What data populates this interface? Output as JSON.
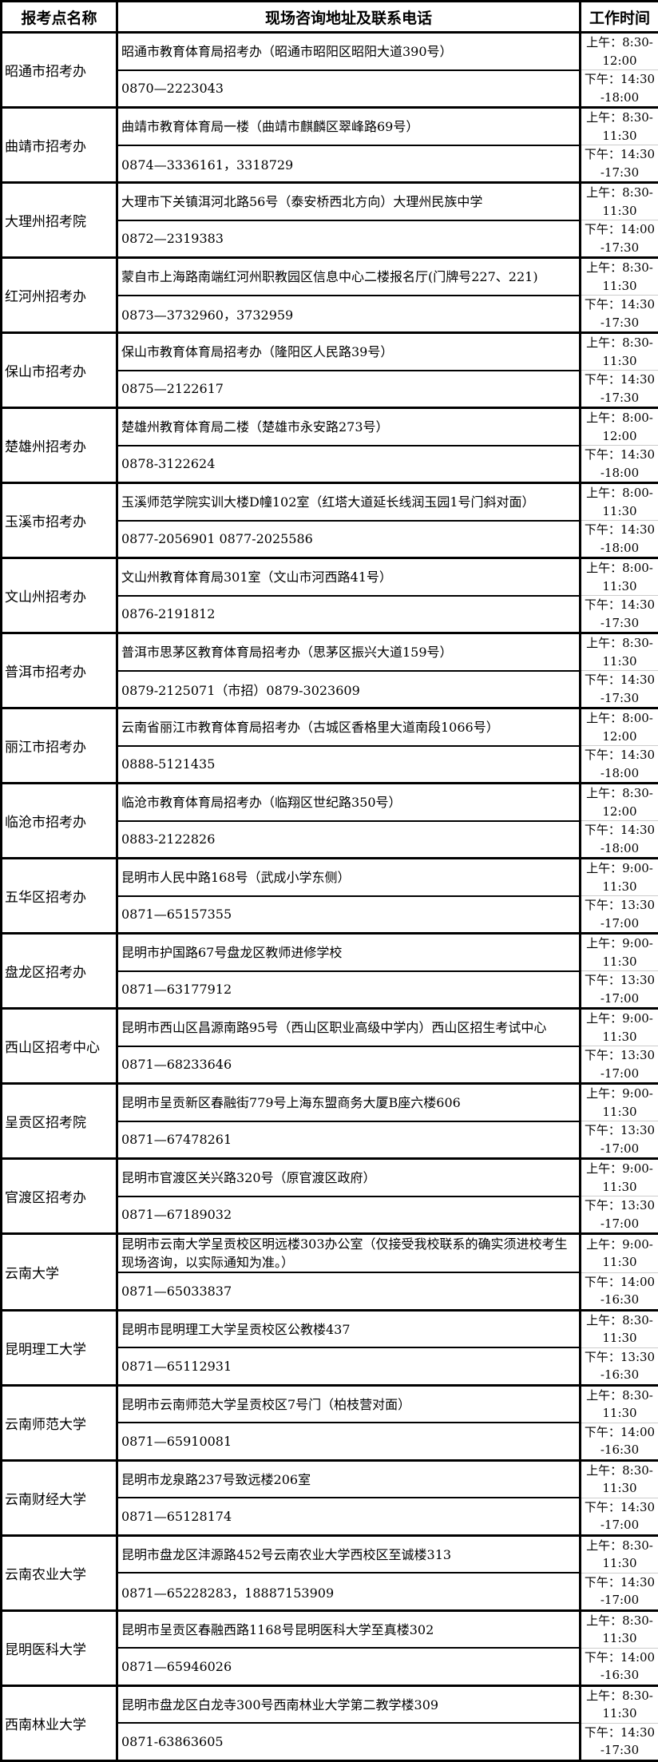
{
  "headers": {
    "name": "报考点名称",
    "address": "现场咨询地址及联系电话",
    "time": "工作时间"
  },
  "rows": [
    {
      "name": "昭通市招考办",
      "address": "昭通市教育体育局招考办（昭通市昭阳区昭阳大道390号）",
      "phone": "0870—2223043",
      "am": "上午：8:30-12:00",
      "pm": "下午：14:30-18:00"
    },
    {
      "name": "曲靖市招考办",
      "address": "曲靖市教育体育局一楼（曲靖市麒麟区翠峰路69号）",
      "phone": "0874—3336161，3318729",
      "am": "上午：8:30-11:30",
      "pm": "下午：14:30-17:30"
    },
    {
      "name": "大理州招考院",
      "address": "大理市下关镇洱河北路56号（泰安桥西北方向）大理州民族中学",
      "phone": "0872—2319383",
      "am": "上午：8:30-11:30",
      "pm": "下午：14:00-17:30"
    },
    {
      "name": "红河州招考办",
      "address": "蒙自市上海路南端红河州职教园区信息中心二楼报名厅(门牌号227、221)",
      "phone": "0873—3732960，3732959",
      "am": "上午：8:30-11:30",
      "pm": "下午：14:30-17:30"
    },
    {
      "name": "保山市招考办",
      "address": "保山市教育体育局招考办（隆阳区人民路39号）",
      "phone": "0875—2122617",
      "am": "上午：8:30-11:30",
      "pm": "下午：14:30-17:30"
    },
    {
      "name": "楚雄州招考办",
      "address": "楚雄州教育体育局二楼（楚雄市永安路273号）",
      "phone": "0878-3122624",
      "am": "上午：8:00-12:00",
      "pm": "下午：14:30-18:00"
    },
    {
      "name": "玉溪市招考办",
      "address": "玉溪师范学院实训大楼D幢102室（红塔大道延长线润玉园1号门斜对面）",
      "phone": "0877-2056901  0877-2025586",
      "am": "上午：8:00-11:30",
      "pm": "下午：14:30-18:00"
    },
    {
      "name": "文山州招考办",
      "address": "文山州教育体育局301室（文山市河西路41号）",
      "phone": "0876-2191812",
      "am": "上午：8:00-11:30",
      "pm": "下午：14:30-17:30"
    },
    {
      "name": "普洱市招考办",
      "address": "普洱市思茅区教育体育局招考办（思茅区振兴大道159号）",
      "phone": "0879-2125071（市招）0879-3023609",
      "am": "上午：8:30-11:30",
      "pm": "下午：14:30-17:30"
    },
    {
      "name": "丽江市招考办",
      "address": "云南省丽江市教育体育局招考办（古城区香格里大道南段1066号）",
      "phone": "0888-5121435",
      "am": "上午：8:00-12:00",
      "pm": "下午：14:30-18:00"
    },
    {
      "name": "临沧市招考办",
      "address": "临沧市教育体育局招考办（临翔区世纪路350号）",
      "phone": "0883-2122826",
      "am": "上午：8:30-12:00",
      "pm": "下午：14:30-18:00"
    },
    {
      "name": "五华区招考办",
      "address": "昆明市人民中路168号（武成小学东侧）",
      "phone": "0871—65157355",
      "am": "上午：9:00-11:30",
      "pm": "下午：13:30-17:00"
    },
    {
      "name": "盘龙区招考办",
      "address": "昆明市护国路67号盘龙区教师进修学校",
      "phone": "0871—63177912",
      "am": "上午：9:00-11:30",
      "pm": "下午：13:30-17:00"
    },
    {
      "name": "西山区招考中心",
      "address": "昆明市西山区昌源南路95号（西山区职业高级中学内）西山区招生考试中心",
      "phone": "0871—68233646",
      "am": "上午：9:00-11:30",
      "pm": "下午：13:30-17:00"
    },
    {
      "name": "呈贡区招考院",
      "address": "昆明市呈贡新区春融街779号上海东盟商务大厦B座六楼606",
      "phone": "0871—67478261",
      "am": "上午：9:00-11:30",
      "pm": "下午：13:30-17:00"
    },
    {
      "name": "官渡区招考办",
      "address": "昆明市官渡区关兴路320号（原官渡区政府）",
      "phone": "0871—67189032",
      "am": "上午：9:00-11:30",
      "pm": "下午：13:30-17:00"
    },
    {
      "name": "云南大学",
      "address": "昆明市云南大学呈贡校区明远楼303办公室（仅接受我校联系的确实须进校考生现场咨询，以实际通知为准。）",
      "phone": "0871—65033837",
      "am": "上午：9:00-11:30",
      "pm": "下午：14:00-16:30"
    },
    {
      "name": "昆明理工大学",
      "address": "昆明市昆明理工大学呈贡校区公教楼437",
      "phone": "0871—65112931",
      "am": "上午：8:30-11:30",
      "pm": "下午：13:30-16:30"
    },
    {
      "name": "云南师范大学",
      "address": "昆明市云南师范大学呈贡校区7号门（柏枝营对面）",
      "phone": "0871—65910081",
      "am": "上午：8:30-11:30",
      "pm": "下午：14:00-16:30"
    },
    {
      "name": "云南财经大学",
      "address": "昆明市龙泉路237号致远楼206室",
      "phone": "0871—65128174",
      "am": "上午：8:30-11:30",
      "pm": "下午：14:30-17:00"
    },
    {
      "name": "云南农业大学",
      "address": "昆明市盘龙区沣源路452号云南农业大学西校区至诚楼313",
      "phone": "0871—65228283，18887153909",
      "am": "上午：8:30-11:30",
      "pm": "下午：14:30-17:00"
    },
    {
      "name": "昆明医科大学",
      "address": "昆明市呈贡区春融西路1168号昆明医科大学至真楼302",
      "phone": "0871—65946026",
      "am": "上午：8:30-11:30",
      "pm": "下午：14:00-16:30"
    },
    {
      "name": "西南林业大学",
      "address": "昆明市盘龙区白龙寺300号西南林业大学第二教学楼309",
      "phone": "0871-63863605",
      "am": "上午：8:30-11:30",
      "pm": "下午：14:30-17:30"
    }
  ]
}
